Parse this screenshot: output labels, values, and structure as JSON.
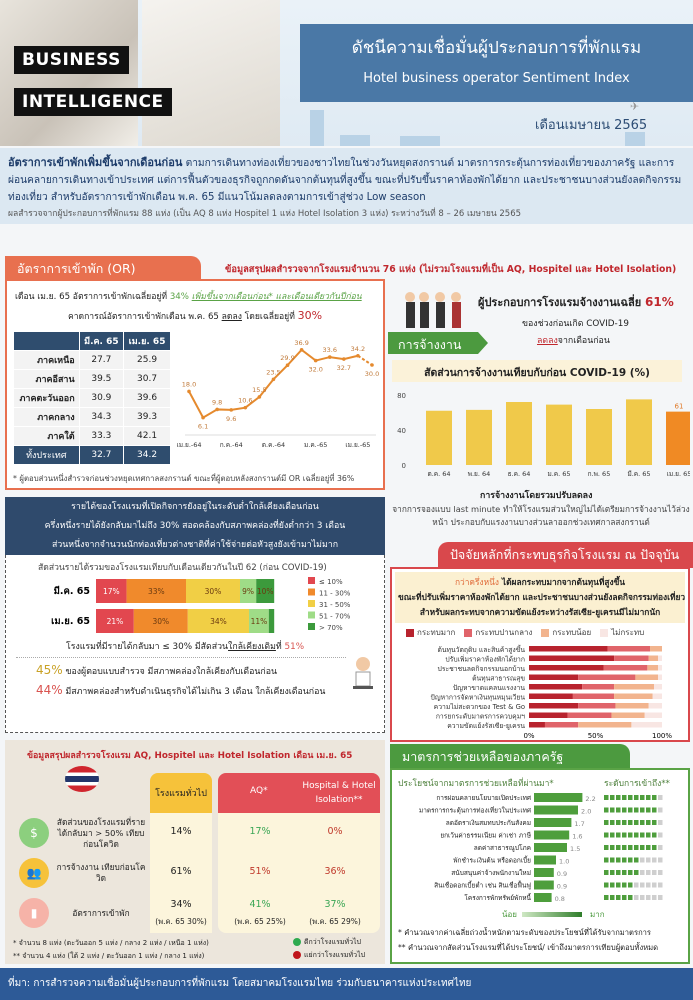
{
  "header": {
    "logo_line1": "BUSINESS",
    "logo_line2": "INTELLIGENCE",
    "title_th": "ดัชนีความเชื่อมั่นผู้ประกอบการที่พักแรม",
    "title_en": "Hotel business operator Sentiment Index",
    "month": "เดือนเมษายน 2565"
  },
  "summary": {
    "lead": "อัตราการเข้าพักเพิ่มขึ้นจากเดือนก่อน",
    "body": " ตามการเดินทางท่องเที่ยวของชาวไทยในช่วงวันหยุดสงกรานต์ มาตรการกระตุ้นการท่องเที่ยวของภาครัฐ และการผ่อนคลายการเดินทางเข้าประเทศ แต่การฟื้นตัวของธุรกิจถูกกดดันจากต้นทุนที่สูงขึ้น ขณะที่ปรับขึ้นราคาห้องพักได้ยาก และประชาชนบางส่วนยังลดกิจกรรมท่องเที่ยว สำหรับอัตราการเข้าพักเดือน พ.ค. 65 มีแนวโน้มลดลงตามการเข้าสู่ช่วง Low season",
    "survey": "ผลสำรวจจากผู้ประกอบการที่พักแรม 88 แห่ง (เป็น AQ 8 แห่ง Hospitel 1 แห่ง Hotel Isolation 3 แห่ง) ระหว่างวันที่ 8 – 26 เมษายน 2565"
  },
  "survey_note": "ข้อมูลสรุปผลสำรวจจากโรงแรมจำนวน 76 แห่ง (ไม่รวมโรงแรมที่เป็น AQ, Hospitel และ Hotel Isolation)",
  "or": {
    "tab": "อัตราการเข้าพัก (OR)",
    "line1_a": "เดือน เม.ย. 65 อัตราการเข้าพักเฉลี่ยอยู่ที่ ",
    "line1_b": "34% ",
    "line1_c": "เพิ่มขึ้นจากเดือนก่อน* และเดือนเดียวกันปีก่อน",
    "line2_a": "คาดการณ์อัตราการเข้าพักเดือน  พ.ค. 65 ",
    "line2_b": "ลดลง",
    "line2_c": " โดยเฉลี่ยอยู่ที่ ",
    "line2_d": "30%",
    "footnote": "* ผู้ตอบส่วนหนึ่งสำรวจก่อนช่วงหยุดเทศกาลสงกรานต์ ขณะที่ผู้ตอบหลังสงกรานต์มี OR เฉลี่ยอยู่ที่ 36%",
    "table": {
      "headers": [
        "",
        "มี.ค. 65",
        "เม.ย. 65"
      ],
      "rows": [
        [
          "ภาคเหนือ",
          "27.7",
          "25.9"
        ],
        [
          "ภาคอีสาน",
          "39.5",
          "30.7"
        ],
        [
          "ภาคตะวันออก",
          "30.9",
          "39.6"
        ],
        [
          "ภาคกลาง",
          "34.3",
          "39.3"
        ],
        [
          "ภาคใต้",
          "33.3",
          "42.1"
        ]
      ],
      "total": [
        "ทั้งประเทศ",
        "32.7",
        "34.2"
      ]
    }
  },
  "employment": {
    "tab": "การจ้างงาน",
    "headline_a": "ผู้ประกอบการโรงแรมจ้างงานเฉลี่ย ",
    "headline_b": "61%",
    "sub1": "ของช่วงก่อนเกิด COVID-19",
    "sub2_a": "ลดลง",
    "sub2_b": "จากเดือนก่อน",
    "chart_title": "สัดส่วนการจ้างงานเทียบกับก่อน COVID-19 (%)",
    "note_title": "การจ้างงานโดยรวมปรับลดลง",
    "note_body": "จากการจองแบบ last minute ทำให้โรงแรมส่วนใหญ่ไม่ได้เตรียมการจ้างงานไว้ล่วงหน้า ประกอบกับแรงงานบางส่วนลาออกช่วงเทศกาลสงกรานต์"
  },
  "revenue": {
    "header": [
      "รายได้ของโรงแรมที่เปิดกิจการยังอยู่ในระดับต่ำใกล้เคียงเดือนก่อน",
      "ครึ่งหนึ่งรายได้ยังกลับมาไม่ถึง 30% สอดคล้องกับสภาพคล่องที่ยังต่ำกว่า 3 เดือน",
      "ส่วนหนึ่งจากจำนวนนักท่องเที่ยวต่างชาติที่ค่าใช้จ่ายต่อหัวสูงยังเข้ามาไม่มาก"
    ],
    "chart_title": "สัดส่วนรายได้รวมของโรงแรมเทียบกับเดือนเดียวกันในปี  62 (ก่อน COVID-19)",
    "summary_a": "โรงแรมที่มีรายได้กลับมา ≤ 30% มีสัดส่วน",
    "summary_b": "ใกล้เคียงเดิม",
    "summary_c": "ที่ ",
    "summary_d": "51%",
    "liq1_pct": "45%",
    "liq1_text": " ของผู้ตอบแบบสำรวจ  มีสภาพคล่องใกล้เคียงกับเดือนก่อน",
    "liq2_pct": "44%",
    "liq2_text": " มีสภาพคล่องสำหรับดำเนินธุรกิจได้ไม่เกิน 3 เดือน ใกล้เคียงเดือนก่อน"
  },
  "factors": {
    "tab": "ปัจจัยหลักที่กระทบธุรกิจโรงแรม ณ ปัจจุบัน",
    "text_a": "กว่าครึ่งหนึ่ง",
    "text_b": " ได้ผลกระทบมากจากต้นทุนที่สูงขึ้น",
    "text_c": "ขณะที่ปรับเพิ่มราคาห้องพักได้ยาก และประชาชนบางส่วนยังลดกิจกรรมท่องเที่ยว",
    "text_d": "สำหรับผลกระทบจากความขัดแย้งระหว่างรัสเซีย-ยูเครนมีไม่มากนัก"
  },
  "aq": {
    "title": "ข้อมูลสรุปผลสำรวจโรงแรม AQ, Hospitel และ Hotel Isolation เดือน เม.ย. 65",
    "logo": "AQ THAILAND",
    "cols": [
      "โรงแรมทั่วไป",
      "AQ*",
      "Hospital & Hotel Isolation**"
    ],
    "rows": [
      {
        "label": "สัดส่วนของโรงแรมที่รายได้กลับมา > 50% เทียบก่อนโควิด",
        "icon": "money-bag-icon",
        "vals": [
          "14%",
          "17%",
          "0%"
        ],
        "colors": [
          "#222",
          "#3aa655",
          "#c0392b"
        ]
      },
      {
        "label": "การจ้างงาน เทียบก่อนโควิด",
        "icon": "people-icon",
        "vals": [
          "61%",
          "51%",
          "36%"
        ],
        "colors": [
          "#222",
          "#c0392b",
          "#c0392b"
        ]
      },
      {
        "label": "อัตราการเข้าพัก",
        "icon": "luggage-icon",
        "vals": [
          "34%",
          "41%",
          "37%"
        ],
        "subs": [
          "(พ.ค. 65 30%)",
          "(พ.ค. 65 25%)",
          "(พ.ค. 65 29%)"
        ],
        "colors": [
          "#222",
          "#3aa655",
          "#3aa655"
        ]
      }
    ],
    "note1": "* จำนวน 8 แห่ง (ตะวันออก 5 แห่ง / กลาง 2 แห่ง / เหนือ 1 แห่ง)",
    "note2": "** จำนวน 4 แห่ง (ใต้ 2 แห่ง / ตะวันออก 1 แห่ง / กลาง 1 แห่ง)",
    "legend_good": "ดีกว่าโรงแรมทั่วไป",
    "legend_bad": "แย่กว่าโรงแรมทั่วไป",
    "good_color": "#2eaa4f",
    "bad_color": "#c0161b"
  },
  "gov": {
    "tab": "มาตรการช่วยเหลือของภาครัฐ",
    "col1": "ประโยชน์จากมาตรการช่วยเหลือที่ผ่านมา*",
    "col2": "ระดับการเข้าถึง**",
    "low": "น้อย",
    "high": "มาก",
    "note1": "* คำนวณจากค่าเฉลี่ยถ่วงน้ำหนักตามระดับของประโยชน์ที่ได้รับจากมาตรการ",
    "note2": "** คำนวณจากสัดส่วนโรงแรมที่ได้ประโยชน์/ เข้าถึงมาตรการเทียบผู้ตอบทั้งหมด"
  },
  "footer": {
    "source": "ที่มา: การสำรวจความเชื่อมั่นผู้ประกอบการที่พักแรม โดยสมาคมโรงแรมไทย ร่วมกับธนาคารแห่งประเทศไทย"
  },
  "chart_data": [
    {
      "type": "line",
      "x": [
        "เม.ย.-64",
        "พ.ค.-64",
        "มิ.ย.-64",
        "ก.ค.-64",
        "ส.ค.-64",
        "ก.ย.-64",
        "ต.ค.-64",
        "พ.ย.-64",
        "ธ.ค.-64",
        "ม.ค.-65",
        "ก.พ.-65",
        "มี.ค.-65",
        "เม.ย.-65",
        "พ.ค.-65"
      ],
      "tick_labels": [
        "เม.ย.-64",
        "ก.ค.-64",
        "ต.ค.-64",
        "ม.ค.-65",
        "เม.ย.-65"
      ],
      "values": [
        18.0,
        6.1,
        9.8,
        9.6,
        10.6,
        15.5,
        23.5,
        29.9,
        36.9,
        32.0,
        33.6,
        32.7,
        34.2,
        30.0
      ],
      "forecast_last": true,
      "color": "#e58a2e"
    },
    {
      "type": "bar",
      "title": "สัดส่วนการจ้างงานเทียบกับก่อน COVID-19 (%)",
      "categories": [
        "ต.ค. 64",
        "พ.ย. 64",
        "ธ.ค. 64",
        "ม.ค. 65",
        "ก.พ. 65",
        "มี.ค. 65",
        "เม.ย. 65"
      ],
      "values": [
        62,
        63,
        72,
        69,
        64,
        75,
        61
      ],
      "yticks": [
        0,
        40,
        80
      ],
      "ylim": [
        0,
        80
      ],
      "data_label": "61",
      "colors": {
        "bar": "#f0c94a",
        "highlight": "#f08a24"
      }
    },
    {
      "type": "bar",
      "stacked": true,
      "orientation": "horizontal",
      "title": "สัดส่วนรายได้รวมของโรงแรมเทียบกับเดือนเดียวกันในปี  62 (ก่อน COVID-19)",
      "categories": [
        "มี.ค. 65",
        "เม.ย. 65"
      ],
      "series": [
        {
          "name": "≤ 10%",
          "values": [
            17,
            21
          ],
          "color": "#e2474f"
        },
        {
          "name": "11 - 30%",
          "values": [
            33,
            30
          ],
          "color": "#f08a2c"
        },
        {
          "name": "31 - 50%",
          "values": [
            30,
            34
          ],
          "color": "#f1cf45"
        },
        {
          "name": "51 - 70%",
          "values": [
            9,
            11
          ],
          "color": "#9fdc87"
        },
        {
          "name": "> 70%",
          "values": [
            10,
            3
          ],
          "color": "#3c9a3c"
        }
      ],
      "labels": [
        [
          "17%",
          "33%",
          "30%",
          "9%",
          "10%"
        ],
        [
          "21%",
          "30%",
          "34%",
          "11%",
          ""
        ]
      ]
    },
    {
      "type": "bar",
      "stacked": true,
      "orientation": "horizontal",
      "categories": [
        "ต้นทุนวัตถุดิบ และสินค้าสูงขึ้น",
        "ปรับเพิ่มราคาห้องพักได้ยาก",
        "ประชาชนลดกิจกรรมนอกบ้าน",
        "ต้นทุนสาธารณสุข",
        "ปัญหาขาดแคลนแรงงาน",
        "ปัญหาการจัดหาเงินทุนหมุนเวียน",
        "ความไม่สะดวกของ Test & Go",
        "การยกระดับมาตรการควบคุมฯ",
        "ความขัดแย้งรัสเซีย-ยูเครน"
      ],
      "series": [
        {
          "name": "กระทบมาก",
          "values": [
            59,
            64,
            56,
            37,
            40,
            33,
            37,
            29,
            12
          ],
          "color": "#b8232e"
        },
        {
          "name": "กระทบปานกลาง",
          "values": [
            32,
            26,
            33,
            43,
            24,
            31,
            28,
            33,
            25
          ],
          "color": "#e0646a"
        },
        {
          "name": "กระทบน้อย",
          "values": [
            9,
            7,
            8,
            17,
            30,
            29,
            25,
            25,
            40
          ],
          "color": "#f2b48e"
        },
        {
          "name": "ไม่กระทบ",
          "values": [
            0,
            3,
            3,
            3,
            6,
            7,
            10,
            13,
            23
          ],
          "color": "#f8e6e3"
        }
      ],
      "xticks": [
        "0%",
        "50%",
        "100%"
      ]
    },
    {
      "type": "bar",
      "orientation": "horizontal",
      "categories": [
        "การผ่อนคลายนโยบายเปิดประเทศ",
        "มาตรการกระตุ้นการท่องเที่ยวในประเทศ",
        "ลดอัตราเงินสมทบประกันสังคม",
        "ยกเว้นค่าธรรมเนียม ค่าเช่า ภาษี",
        "ลดค่าสาธารณูปโภค",
        "พักชำระเงินต้น หรือดอกเบี้ย",
        "สนับสนุนค่าจ้างพนักงานใหม่",
        "สินเชื่อดอกเบี้ยต่ำ เช่น สินเชื่อฟื้นฟู",
        "โครงการพักทรัพย์พักหนี้"
      ],
      "values": [
        2.2,
        2.0,
        1.7,
        1.6,
        1.5,
        1.0,
        0.9,
        0.9,
        0.8
      ],
      "access_level_of_10": [
        9,
        9,
        9,
        9,
        9,
        6,
        6,
        5,
        5
      ],
      "color": "#4e9e3c"
    }
  ]
}
